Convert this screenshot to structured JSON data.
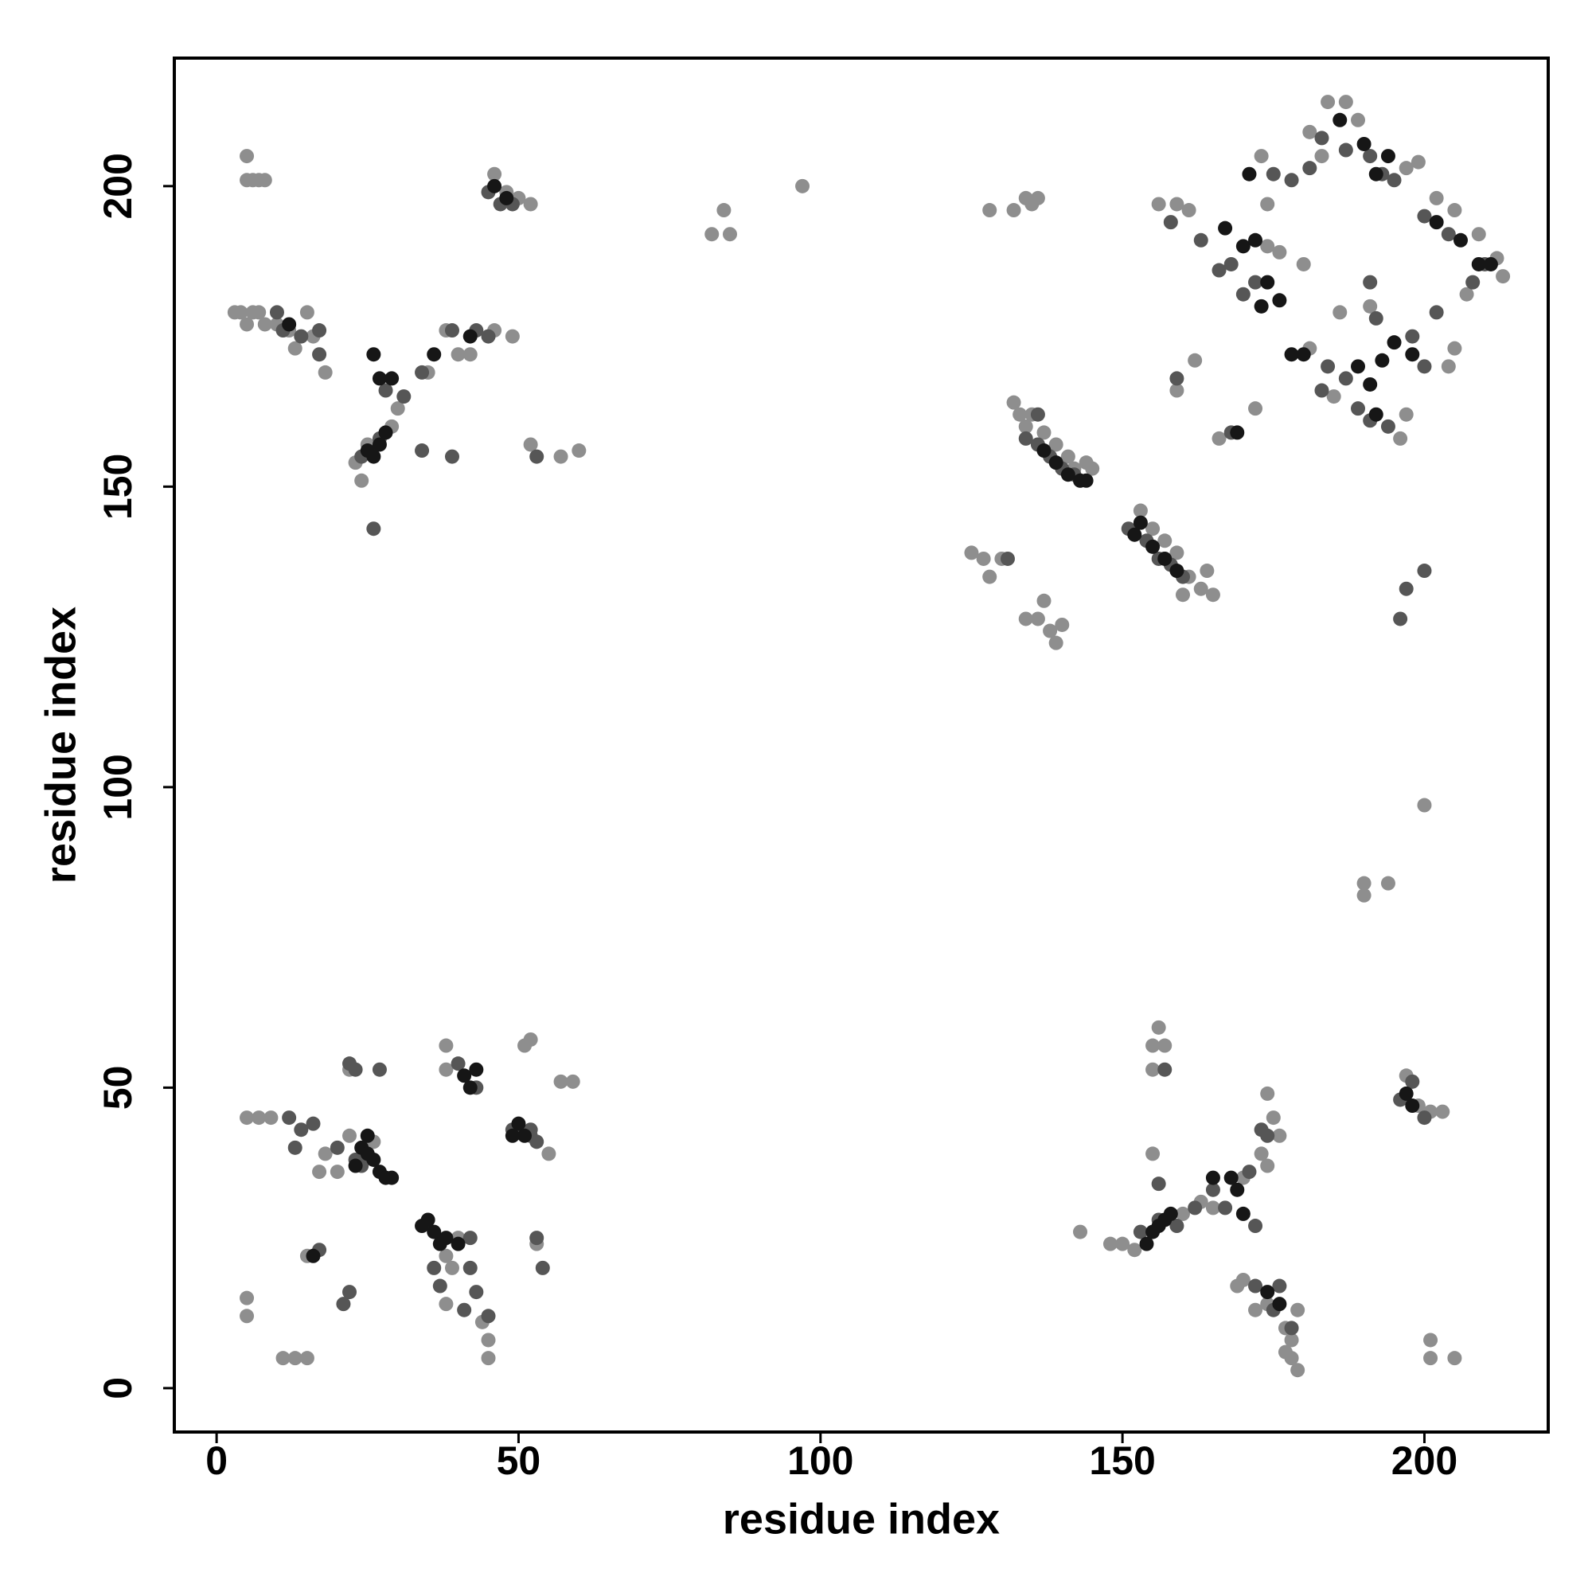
{
  "chart_data": {
    "type": "scatter",
    "x_label": "residue index",
    "y_label": "residue index",
    "xlim": [
      -7,
      220.5
    ],
    "ylim": [
      -7.3,
      221.3
    ],
    "xticks": [
      0,
      50,
      100,
      150,
      200
    ],
    "yticks": [
      0,
      50,
      100,
      150,
      200
    ],
    "series": [
      {
        "color": "#8e8e8e",
        "x": [
          3,
          4,
          5,
          6,
          7,
          8,
          10,
          12,
          13,
          15,
          16,
          18,
          23,
          24,
          25,
          29,
          30,
          35,
          38,
          40,
          42,
          46,
          49,
          5,
          5,
          6,
          7,
          8,
          46,
          48,
          50,
          52,
          52,
          57,
          60,
          82,
          84,
          85,
          97,
          128,
          132,
          134,
          135,
          136,
          132,
          133,
          134,
          135,
          137,
          139,
          141,
          142,
          143,
          144,
          145,
          153,
          155,
          157,
          159,
          161,
          163,
          165,
          164,
          160,
          125,
          127,
          128,
          130,
          134,
          136,
          138,
          139,
          140,
          137,
          156,
          159,
          161,
          173,
          174,
          176,
          181,
          183,
          180,
          184,
          187,
          186,
          191,
          197,
          199,
          202,
          205,
          209,
          213,
          212,
          207,
          205,
          204,
          197,
          196,
          185,
          181,
          166,
          162,
          159,
          172,
          174,
          189,
          194,
          190,
          190,
          200,
          5,
          7,
          9,
          5,
          5,
          11,
          13,
          15,
          15,
          17,
          18,
          22,
          26,
          38,
          38,
          39,
          38,
          45,
          45,
          44,
          51,
          52,
          55,
          57,
          59,
          53,
          40,
          38,
          20,
          22,
          148,
          150,
          152,
          155,
          155,
          155,
          156,
          157,
          160,
          163,
          165,
          170,
          173,
          174,
          175,
          176,
          169,
          172,
          174,
          177,
          177,
          178,
          179,
          178,
          179,
          201,
          201,
          205,
          197,
          199,
          201,
          203,
          143,
          170,
          174
        ],
        "y": [
          179,
          179,
          177,
          179,
          179,
          177,
          177,
          176,
          173,
          179,
          175,
          169,
          154,
          151,
          157,
          160,
          163,
          169,
          176,
          172,
          172,
          176,
          175,
          205,
          201,
          201,
          201,
          201,
          202,
          199,
          198,
          197,
          157,
          155,
          156,
          192,
          196,
          192,
          200,
          196,
          196,
          198,
          197,
          198,
          164,
          162,
          160,
          162,
          159,
          157,
          155,
          153,
          151,
          154,
          153,
          146,
          143,
          141,
          139,
          135,
          133,
          132,
          136,
          132,
          139,
          138,
          135,
          138,
          128,
          128,
          126,
          124,
          127,
          131,
          197,
          197,
          196,
          205,
          197,
          189,
          209,
          205,
          187,
          214,
          214,
          179,
          180,
          203,
          204,
          198,
          196,
          192,
          185,
          188,
          182,
          173,
          170,
          162,
          158,
          165,
          173,
          158,
          171,
          166,
          163,
          190,
          211,
          84,
          84,
          82,
          97,
          45,
          45,
          45,
          12,
          15,
          5,
          5,
          5,
          22,
          36,
          39,
          53,
          41,
          57,
          53,
          20,
          14,
          5,
          8,
          11,
          57,
          58,
          39,
          51,
          51,
          24,
          25,
          22,
          36,
          42,
          24,
          24,
          23,
          39,
          53,
          57,
          60,
          57,
          29,
          31,
          30,
          35,
          39,
          49,
          45,
          42,
          17,
          13,
          14,
          10,
          6,
          5,
          3,
          8,
          13,
          5,
          8,
          5,
          52,
          47,
          46,
          46,
          26,
          18,
          37
        ]
      },
      {
        "color": "#565656",
        "x": [
          10,
          11,
          14,
          17,
          17,
          24,
          27,
          28,
          31,
          34,
          39,
          43,
          45,
          34,
          39,
          26,
          45,
          47,
          49,
          53,
          131,
          134,
          136,
          138,
          140,
          142,
          136,
          151,
          154,
          156,
          158,
          160,
          158,
          163,
          166,
          168,
          170,
          172,
          175,
          178,
          181,
          183,
          187,
          191,
          193,
          195,
          200,
          204,
          208,
          210,
          202,
          200,
          198,
          189,
          187,
          184,
          183,
          191,
          194,
          192,
          191,
          200,
          197,
          196,
          168,
          159,
          12,
          13,
          16,
          14,
          21,
          22,
          17,
          23,
          24,
          20,
          22,
          23,
          27,
          36,
          37,
          41,
          42,
          42,
          43,
          45,
          40,
          43,
          52,
          53,
          54,
          53,
          49,
          52,
          153,
          156,
          157,
          159,
          162,
          165,
          167,
          172,
          171,
          174,
          173,
          172,
          176,
          175,
          178,
          196,
          198,
          200,
          156
        ],
        "y": [
          179,
          176,
          175,
          176,
          172,
          155,
          158,
          166,
          165,
          169,
          176,
          176,
          175,
          156,
          155,
          143,
          199,
          197,
          197,
          155,
          138,
          158,
          157,
          155,
          153,
          152,
          162,
          143,
          141,
          138,
          137,
          135,
          194,
          191,
          186,
          187,
          182,
          184,
          202,
          201,
          203,
          208,
          206,
          205,
          202,
          201,
          195,
          192,
          184,
          187,
          179,
          170,
          175,
          163,
          168,
          170,
          166,
          161,
          160,
          178,
          184,
          136,
          133,
          128,
          159,
          168,
          45,
          40,
          44,
          43,
          14,
          16,
          23,
          38,
          37,
          40,
          54,
          53,
          53,
          20,
          17,
          13,
          20,
          25,
          16,
          12,
          54,
          50,
          43,
          41,
          20,
          25,
          43,
          42,
          26,
          34,
          53,
          27,
          30,
          33,
          30,
          27,
          36,
          42,
          43,
          17,
          17,
          13,
          10,
          48,
          51,
          45,
          28
        ]
      },
      {
        "color": "#161616",
        "x": [
          12,
          25,
          26,
          27,
          28,
          27,
          29,
          36,
          42,
          26,
          46,
          48,
          137,
          139,
          141,
          143,
          144,
          152,
          153,
          155,
          157,
          159,
          167,
          170,
          172,
          174,
          176,
          178,
          180,
          186,
          190,
          192,
          194,
          202,
          206,
          209,
          211,
          189,
          191,
          193,
          195,
          198,
          192,
          171,
          169,
          173,
          24,
          25,
          26,
          27,
          28,
          29,
          34,
          35,
          36,
          37,
          38,
          41,
          42,
          43,
          49,
          50,
          51,
          25,
          40,
          16,
          23,
          154,
          155,
          156,
          157,
          158,
          165,
          168,
          170,
          169,
          174,
          176,
          197,
          198
        ],
        "y": [
          177,
          156,
          155,
          157,
          159,
          168,
          168,
          172,
          175,
          172,
          200,
          198,
          156,
          154,
          152,
          151,
          151,
          142,
          144,
          140,
          138,
          136,
          193,
          190,
          191,
          184,
          181,
          172,
          172,
          211,
          207,
          202,
          205,
          194,
          191,
          187,
          187,
          170,
          167,
          171,
          174,
          172,
          162,
          202,
          159,
          180,
          40,
          39,
          38,
          36,
          35,
          35,
          27,
          28,
          26,
          24,
          25,
          52,
          50,
          53,
          42,
          44,
          42,
          42,
          24,
          22,
          37,
          24,
          26,
          27,
          28,
          29,
          35,
          35,
          29,
          33,
          16,
          14,
          49,
          47
        ]
      }
    ]
  }
}
